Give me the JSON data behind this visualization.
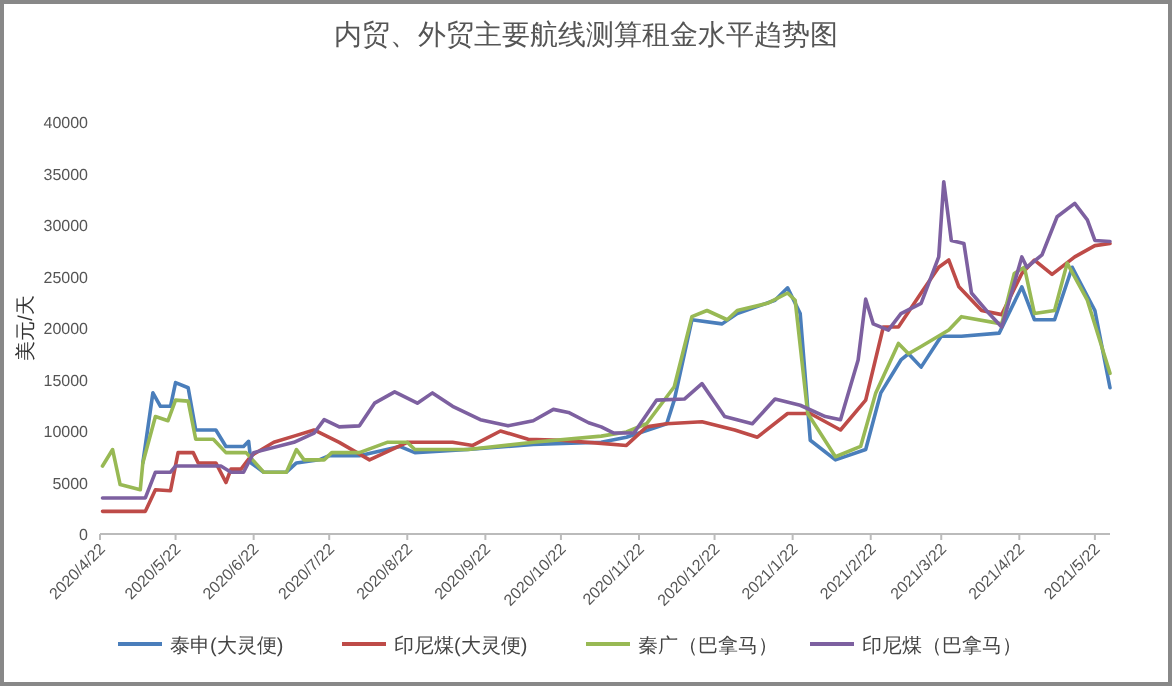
{
  "chart_data": {
    "type": "line",
    "title": "内贸、外贸主要航线测算租金水平趋势图",
    "ylabel": "美元/天",
    "xlim": [
      "2020-04-22",
      "2021-05-28"
    ],
    "xticks": [
      {
        "value": "2020-04-22",
        "label": "2020/4/22"
      },
      {
        "value": "2020-05-22",
        "label": "2020/5/22"
      },
      {
        "value": "2020-06-22",
        "label": "2020/6/22"
      },
      {
        "value": "2020-07-22",
        "label": "2020/7/22"
      },
      {
        "value": "2020-08-22",
        "label": "2020/8/22"
      },
      {
        "value": "2020-09-22",
        "label": "2020/9/22"
      },
      {
        "value": "2020-10-22",
        "label": "2020/10/22"
      },
      {
        "value": "2020-11-22",
        "label": "2020/11/22"
      },
      {
        "value": "2020-12-22",
        "label": "2020/12/22"
      },
      {
        "value": "2021-01-22",
        "label": "2021/1/22"
      },
      {
        "value": "2021-02-22",
        "label": "2021/2/22"
      },
      {
        "value": "2021-03-22",
        "label": "2021/3/22"
      },
      {
        "value": "2021-04-22",
        "label": "2021/4/22"
      },
      {
        "value": "2021-05-22",
        "label": "2021/5/22"
      }
    ],
    "ylim": [
      0,
      40000
    ],
    "yticks": [
      0,
      5000,
      10000,
      15000,
      20000,
      25000,
      30000,
      35000,
      40000
    ],
    "legend": "bottom",
    "marker": "none",
    "line_style": "solid",
    "series": [
      {
        "name": "泰申(大灵便)",
        "color": "#4a7ebb",
        "x": [
          "2020-05-09",
          "2020-05-13",
          "2020-05-16",
          "2020-05-20",
          "2020-05-22",
          "2020-05-27",
          "2020-05-30",
          "2020-06-07",
          "2020-06-11",
          "2020-06-18",
          "2020-06-20",
          "2020-06-21",
          "2020-06-26",
          "2020-07-05",
          "2020-07-09",
          "2020-07-18",
          "2020-07-22",
          "2020-08-03",
          "2020-08-19",
          "2020-08-25",
          "2020-09-15",
          "2020-10-11",
          "2020-11-07",
          "2020-11-17",
          "2020-12-03",
          "2020-12-06",
          "2020-12-13",
          "2020-12-25",
          "2020-12-31",
          "2021-01-15",
          "2021-01-20",
          "2021-01-25",
          "2021-01-29",
          "2021-02-08",
          "2021-02-20",
          "2021-02-26",
          "2021-03-06",
          "2021-03-09",
          "2021-03-14",
          "2021-03-22",
          "2021-03-30",
          "2021-04-14",
          "2021-04-23",
          "2021-04-28",
          "2021-05-06",
          "2021-05-13",
          "2021-05-22",
          "2021-05-28"
        ],
        "values": [
          6900,
          13700,
          12400,
          12400,
          14700,
          14200,
          10100,
          10100,
          8500,
          8500,
          9000,
          6900,
          6000,
          6000,
          6900,
          7200,
          7600,
          7600,
          8500,
          7900,
          8200,
          8700,
          8900,
          9400,
          10700,
          13000,
          20800,
          20400,
          21400,
          22700,
          23900,
          21400,
          9100,
          7200,
          8200,
          13700,
          16900,
          17500,
          16200,
          19200,
          19200,
          19500,
          24000,
          20800,
          20800,
          25900,
          21700,
          14200
        ]
      },
      {
        "name": "印尼煤(大灵便)",
        "color": "#be4b48",
        "x": [
          "2020-04-23",
          "2020-05-10",
          "2020-05-14",
          "2020-05-20",
          "2020-05-23",
          "2020-05-29",
          "2020-05-31",
          "2020-06-07",
          "2020-06-11",
          "2020-06-13",
          "2020-06-17",
          "2020-06-21",
          "2020-06-30",
          "2020-07-08",
          "2020-07-16",
          "2020-07-21",
          "2020-07-26",
          "2020-08-07",
          "2020-08-22",
          "2020-09-09",
          "2020-09-17",
          "2020-09-28",
          "2020-10-09",
          "2020-10-22",
          "2020-11-07",
          "2020-11-17",
          "2020-11-25",
          "2020-12-03",
          "2020-12-17",
          "2020-12-30",
          "2021-01-08",
          "2021-01-20",
          "2021-01-29",
          "2021-02-10",
          "2021-02-20",
          "2021-02-27",
          "2021-03-05",
          "2021-03-14",
          "2021-03-21",
          "2021-03-25",
          "2021-03-29",
          "2021-04-07",
          "2021-04-15",
          "2021-04-23",
          "2021-04-28",
          "2021-05-05",
          "2021-05-14",
          "2021-05-22",
          "2021-05-28"
        ],
        "values": [
          2200,
          2200,
          4300,
          4200,
          7900,
          7900,
          6900,
          6900,
          5000,
          6300,
          6300,
          7600,
          8900,
          9500,
          10100,
          9500,
          8900,
          7200,
          8900,
          8900,
          8600,
          10000,
          9200,
          9100,
          8800,
          8600,
          10400,
          10700,
          10900,
          10100,
          9400,
          11700,
          11700,
          10100,
          13000,
          20100,
          20100,
          23400,
          25900,
          26600,
          24000,
          21700,
          21300,
          25300,
          26600,
          25200,
          26900,
          28000,
          28200
        ]
      },
      {
        "name": "秦广（巴拿马）",
        "color": "#98b954",
        "x": [
          "2020-04-23",
          "2020-04-27",
          "2020-04-30",
          "2020-05-08",
          "2020-05-09",
          "2020-05-14",
          "2020-05-19",
          "2020-05-22",
          "2020-05-27",
          "2020-05-30",
          "2020-06-06",
          "2020-06-11",
          "2020-06-19",
          "2020-06-26",
          "2020-07-05",
          "2020-07-09",
          "2020-07-12",
          "2020-07-20",
          "2020-07-23",
          "2020-08-03",
          "2020-08-14",
          "2020-08-22",
          "2020-08-25",
          "2020-09-15",
          "2020-10-11",
          "2020-11-07",
          "2020-11-17",
          "2020-11-25",
          "2020-12-06",
          "2020-12-13",
          "2020-12-19",
          "2020-12-27",
          "2020-12-31",
          "2021-01-12",
          "2021-01-20",
          "2021-01-23",
          "2021-01-28",
          "2021-02-08",
          "2021-02-18",
          "2021-02-24",
          "2021-03-05",
          "2021-03-09",
          "2021-03-14",
          "2021-03-25",
          "2021-03-30",
          "2021-04-15",
          "2021-04-20",
          "2021-04-24",
          "2021-04-28",
          "2021-05-06",
          "2021-05-11",
          "2021-05-19",
          "2021-05-28"
        ],
        "values": [
          6600,
          8200,
          4800,
          4300,
          6900,
          11400,
          11000,
          13000,
          12900,
          9200,
          9200,
          7900,
          7900,
          6000,
          6000,
          8200,
          7200,
          7200,
          7900,
          7900,
          8900,
          8900,
          8200,
          8200,
          8900,
          9500,
          9900,
          10700,
          14300,
          21100,
          21700,
          20800,
          21700,
          22400,
          23400,
          22700,
          11700,
          7500,
          8500,
          13700,
          18500,
          17500,
          18200,
          19800,
          21100,
          20400,
          25300,
          25900,
          21400,
          21700,
          26300,
          22700,
          15600
        ]
      },
      {
        "name": "印尼煤（巴拿马）",
        "color": "#7d60a0",
        "x": [
          "2020-04-23",
          "2020-05-10",
          "2020-05-14",
          "2020-05-20",
          "2020-05-22",
          "2020-06-09",
          "2020-06-13",
          "2020-06-18",
          "2020-06-22",
          "2020-07-08",
          "2020-07-16",
          "2020-07-20",
          "2020-07-26",
          "2020-08-03",
          "2020-08-09",
          "2020-08-17",
          "2020-08-26",
          "2020-09-01",
          "2020-09-09",
          "2020-09-20",
          "2020-10-01",
          "2020-10-11",
          "2020-10-19",
          "2020-10-25",
          "2020-11-02",
          "2020-11-07",
          "2020-11-12",
          "2020-11-20",
          "2020-11-29",
          "2020-12-10",
          "2020-12-17",
          "2020-12-26",
          "2021-01-06",
          "2021-01-15",
          "2021-01-25",
          "2021-02-04",
          "2021-02-10",
          "2021-02-17",
          "2021-02-20",
          "2021-02-23",
          "2021-03-01",
          "2021-03-06",
          "2021-03-14",
          "2021-03-21",
          "2021-03-23",
          "2021-03-26",
          "2021-03-31",
          "2021-04-03",
          "2021-04-10",
          "2021-04-15",
          "2021-04-23",
          "2021-04-25",
          "2021-05-01",
          "2021-05-07",
          "2021-05-14",
          "2021-05-19",
          "2021-05-22",
          "2021-05-28"
        ],
        "values": [
          3500,
          3500,
          6000,
          6000,
          6600,
          6600,
          6000,
          6000,
          7900,
          8900,
          9800,
          11100,
          10400,
          10500,
          12700,
          13800,
          12700,
          13700,
          12400,
          11100,
          10500,
          11000,
          12100,
          11800,
          10800,
          10400,
          9800,
          9800,
          13000,
          13100,
          14600,
          11400,
          10700,
          13100,
          12500,
          11400,
          11100,
          16900,
          22800,
          20400,
          19800,
          21400,
          22400,
          26900,
          34200,
          28500,
          28200,
          23400,
          21400,
          20100,
          26900,
          25900,
          27100,
          30800,
          32100,
          30500,
          28500,
          28400
        ]
      }
    ]
  }
}
